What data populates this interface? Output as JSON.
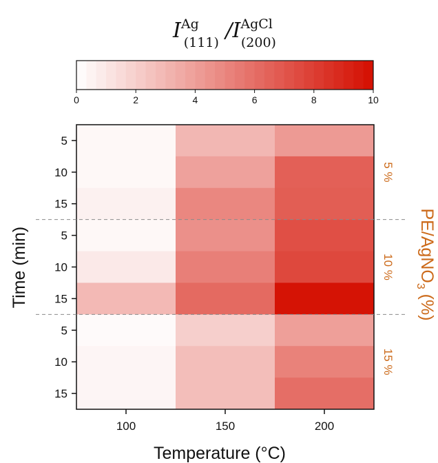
{
  "chart_data": {
    "type": "heatmap",
    "title": {
      "numerator": {
        "base": "I",
        "sup": "Ag",
        "sub": "(111)"
      },
      "separator": " /",
      "denominator": {
        "base": "I",
        "sup": "AgCl",
        "sub": "(200)"
      }
    },
    "xlabel": "Temperature (°C)",
    "ylabel": "Time (min)",
    "x_categories": [
      "100",
      "150",
      "200"
    ],
    "y_categories": [
      "5",
      "10",
      "15",
      "5",
      "10",
      "15",
      "5",
      "10",
      "15"
    ],
    "groups": [
      {
        "label": "5 %",
        "rows": [
          0,
          1,
          2
        ]
      },
      {
        "label": "10 %",
        "rows": [
          3,
          4,
          5
        ]
      },
      {
        "label": "15 %",
        "rows": [
          6,
          7,
          8
        ]
      }
    ],
    "group_axis_label": {
      "text": "PE/AgNO",
      "sub": "3",
      "suffix": " (%)"
    },
    "values": [
      [
        0.3,
        3.0,
        4.2
      ],
      [
        0.3,
        3.9,
        6.6
      ],
      [
        0.6,
        5.0,
        6.7
      ],
      [
        0.3,
        4.6,
        7.3
      ],
      [
        0.9,
        5.3,
        7.6
      ],
      [
        2.9,
        6.2,
        9.8
      ],
      [
        0.2,
        2.0,
        4.0
      ],
      [
        0.4,
        2.7,
        5.2
      ],
      [
        0.4,
        2.7,
        6.0
      ]
    ],
    "colorbar": {
      "min": 0,
      "max": 10,
      "ticks": [
        0,
        2,
        4,
        6,
        8,
        10
      ],
      "colors": [
        "#ffffff",
        "#d40e00"
      ]
    },
    "group_color": "#cc6a1a"
  }
}
